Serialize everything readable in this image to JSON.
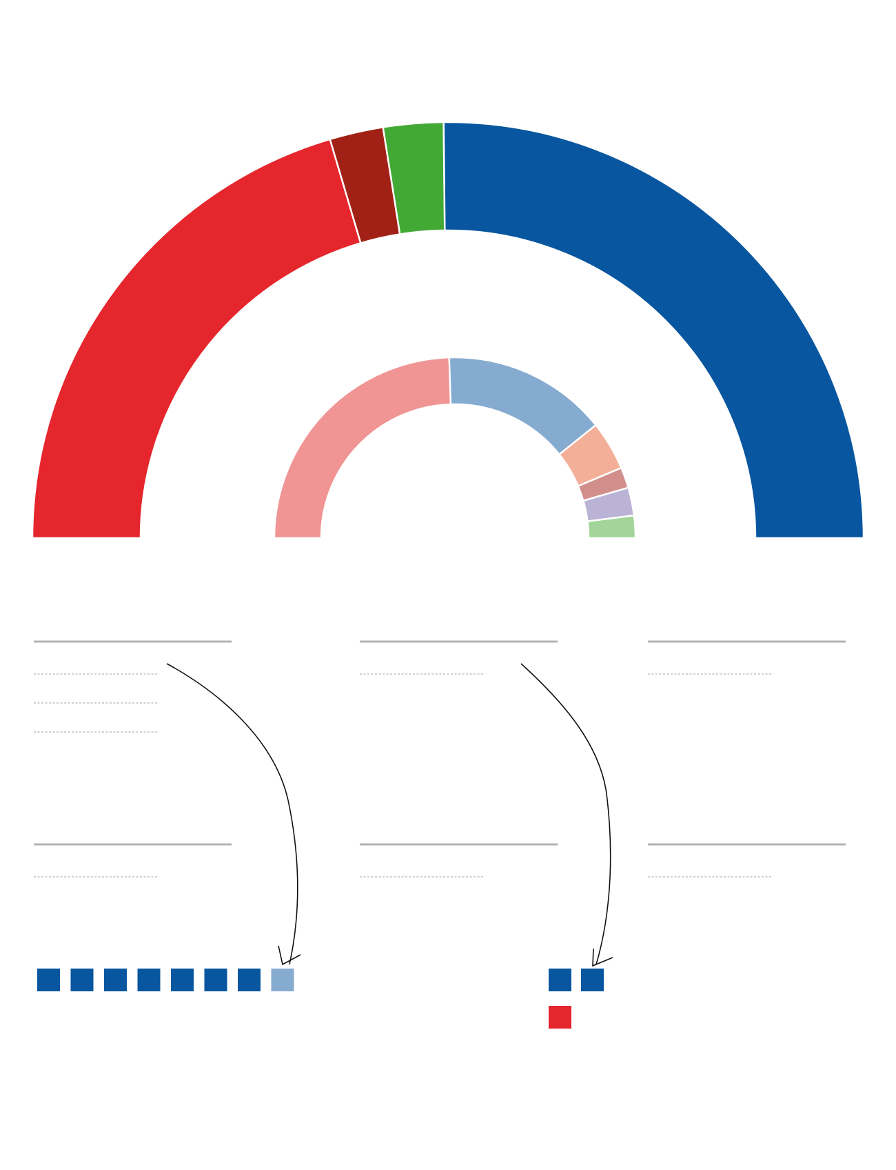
{
  "chart_data": [
    {
      "type": "pie",
      "variant": "semicircle-donut",
      "ring": "outer",
      "series": [
        {
          "value": 24.5,
          "color": "#e5262c"
        },
        {
          "value": 2.5,
          "color": "#a22116"
        },
        {
          "value": 2.8,
          "color": "#43a935"
        },
        {
          "value": 30.2,
          "color": "#07569f"
        }
      ]
    },
    {
      "type": "pie",
      "variant": "semicircle-donut",
      "ring": "inner",
      "series": [
        {
          "value": 49.0,
          "color": "#f09494"
        },
        {
          "value": 29.5,
          "color": "#86abd0"
        },
        {
          "value": 8.8,
          "color": "#f3af98"
        },
        {
          "value": 3.7,
          "color": "#d28e8b"
        },
        {
          "value": 5.0,
          "color": "#bbb3d6"
        },
        {
          "value": 4.0,
          "color": "#a3d59b"
        }
      ]
    },
    {
      "type": "table",
      "variant": "seat-blocks",
      "groups": [
        {
          "group": "left",
          "rows": [
            [
              "#07569f",
              "#07569f",
              "#07569f",
              "#07569f",
              "#07569f",
              "#07569f",
              "#07569f",
              "#86abd0"
            ]
          ]
        },
        {
          "group": "right",
          "rows": [
            [
              "#07569f",
              "#07569f"
            ],
            [
              "#e5262c"
            ]
          ]
        }
      ]
    }
  ],
  "legend_panels": [
    {
      "rows": 3
    },
    {
      "rows": 1
    },
    {
      "rows": 1
    },
    {
      "rows": 1
    },
    {
      "rows": 1
    },
    {
      "rows": 1
    }
  ],
  "colors": {
    "panel_rule": "#b4b4b4",
    "dotted_rule": "#b4b4b4",
    "arrow": "#111111",
    "separator": "#ffffff"
  }
}
